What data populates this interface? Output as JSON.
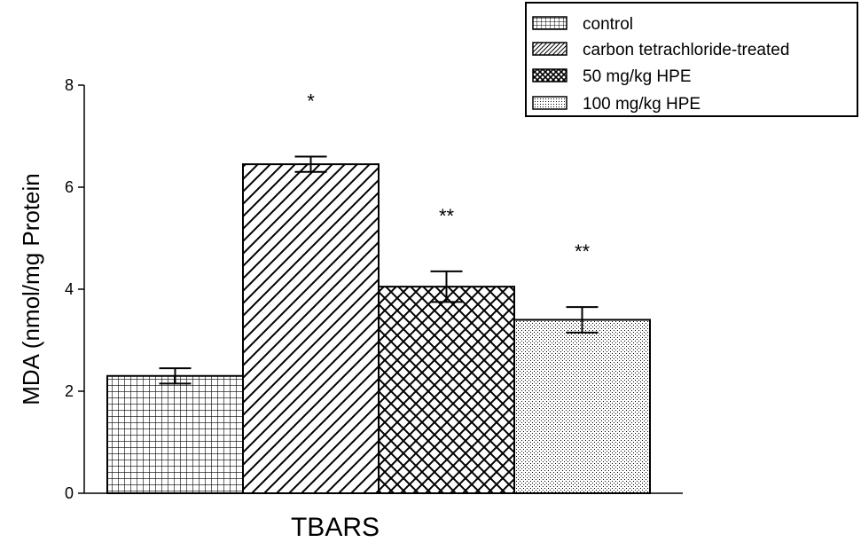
{
  "chart_data": {
    "type": "bar",
    "title": "",
    "xlabel": "TBARS",
    "ylabel": "MDA (nmol/mg Protein",
    "ylim": [
      0,
      8
    ],
    "yticks": [
      0,
      2,
      4,
      6,
      8
    ],
    "grid": false,
    "legend_position": "top-right",
    "series": [
      {
        "name": "control",
        "value": 2.3,
        "error": 0.15,
        "significance": "",
        "pattern": "grid"
      },
      {
        "name": "carbon tetrachloride-treated",
        "value": 6.45,
        "error": 0.15,
        "significance": "*",
        "pattern": "diagonal"
      },
      {
        "name": "50 mg/kg HPE",
        "value": 4.05,
        "error": 0.3,
        "significance": "**",
        "pattern": "crosshatch"
      },
      {
        "name": "100 mg/kg HPE",
        "value": 3.4,
        "error": 0.25,
        "significance": "**",
        "pattern": "dots"
      }
    ]
  }
}
